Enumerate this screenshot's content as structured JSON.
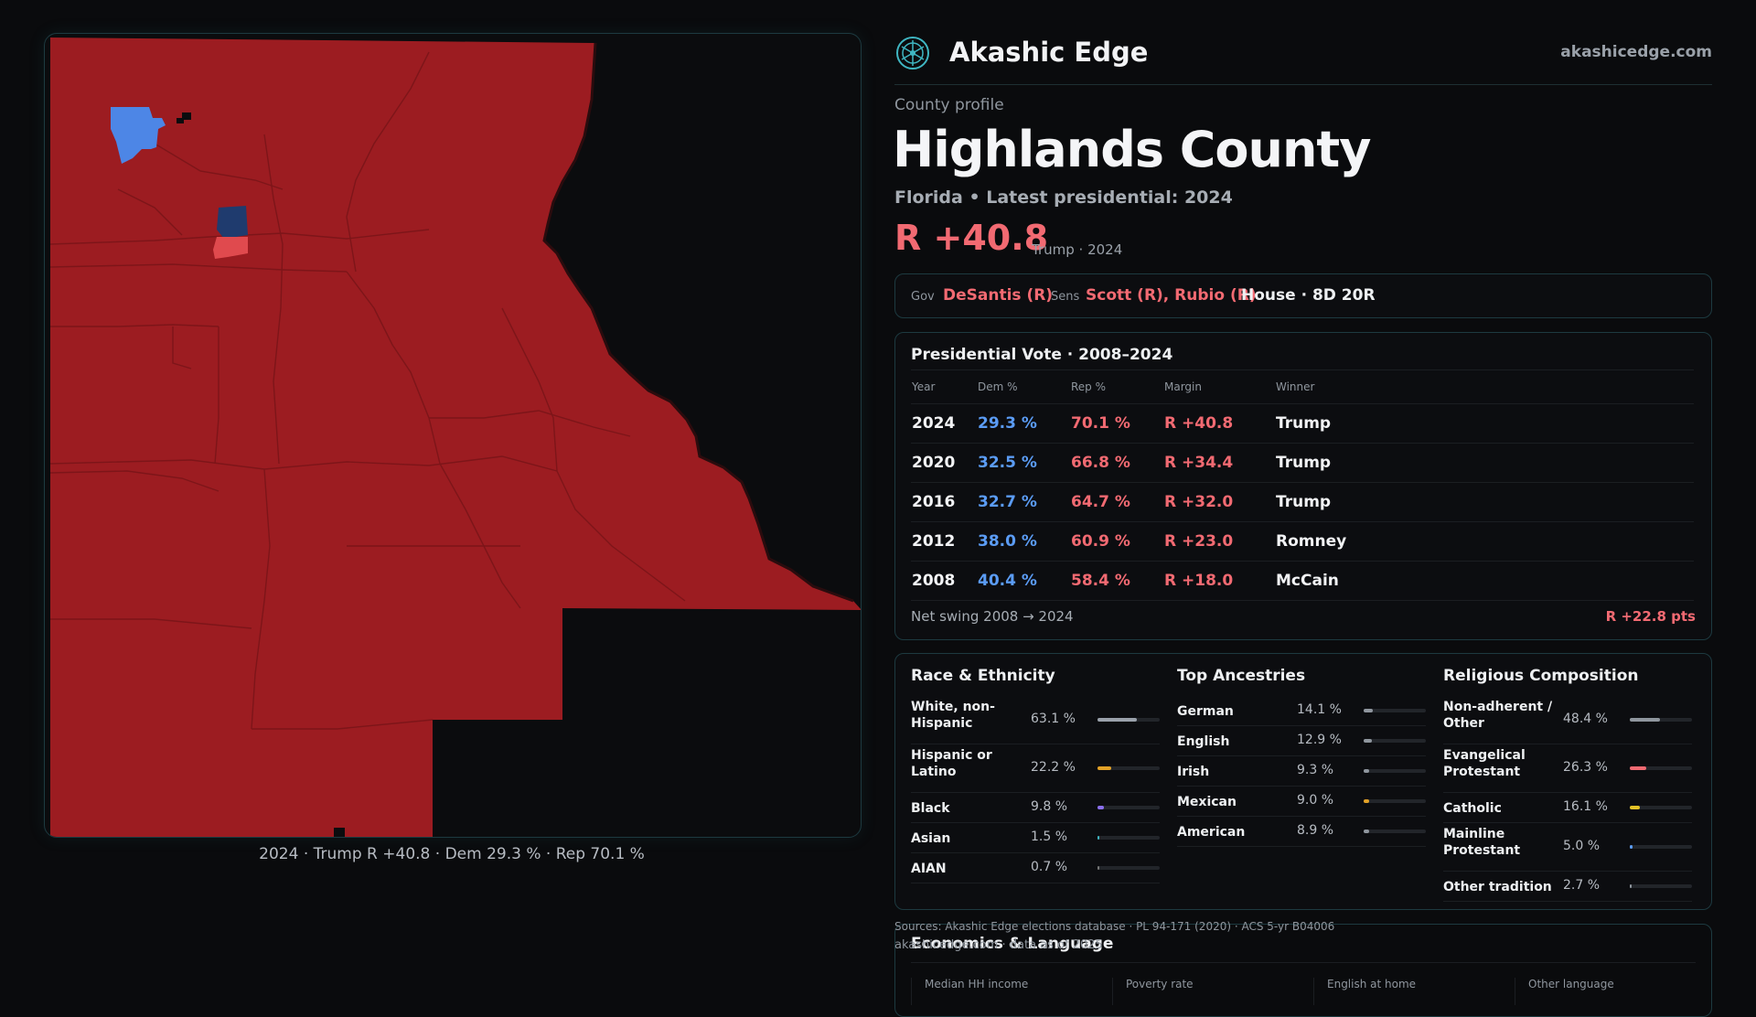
{
  "map": {
    "caption": "2024 · Trump R +40.8 · Dem 29.3 % · Rep 70.1 %"
  },
  "header": {
    "brand": "Akashic Edge",
    "site": "akashicedge.com",
    "logo_icon": "sacred-geometry-logo-icon"
  },
  "profile": {
    "label": "County profile",
    "title": "Highlands County",
    "subtitle": "Florida • Latest presidential: 2024",
    "margin": "R +40.8",
    "margin_note": "Trump · 2024"
  },
  "officials": {
    "gov_label": "Gov",
    "gov": "DeSantis (R)",
    "sens_label": "Sens",
    "sens": "Scott (R), Rubio (R)",
    "house": "House · 8D 20R"
  },
  "presidential": {
    "title": "Presidential Vote · 2008–2024",
    "headers": [
      "Year",
      "Dem %",
      "Rep %",
      "Margin",
      "Winner"
    ],
    "rows": [
      {
        "year": "2024",
        "dem": "29.3 %",
        "rep": "70.1 %",
        "margin": "R +40.8",
        "winner": "Trump"
      },
      {
        "year": "2020",
        "dem": "32.5 %",
        "rep": "66.8 %",
        "margin": "R +34.4",
        "winner": "Trump"
      },
      {
        "year": "2016",
        "dem": "32.7 %",
        "rep": "64.7 %",
        "margin": "R +32.0",
        "winner": "Trump"
      },
      {
        "year": "2012",
        "dem": "38.0 %",
        "rep": "60.9 %",
        "margin": "R +23.0",
        "winner": "Romney"
      },
      {
        "year": "2008",
        "dem": "40.4 %",
        "rep": "58.4 %",
        "margin": "R +18.0",
        "winner": "McCain"
      }
    ],
    "net_swing_label": "Net swing 2008 → 2024",
    "net_swing_value": "R +22.8 pts"
  },
  "race": {
    "title": "Race & Ethnicity",
    "items": [
      {
        "label": "White, non-Hispanic",
        "pct": "63.1 %",
        "value": 63.1,
        "color": "#9aa1ab"
      },
      {
        "label": "Hispanic or Latino",
        "pct": "22.2 %",
        "value": 22.2,
        "color": "#e3a227"
      },
      {
        "label": "Black",
        "pct": "9.8 %",
        "value": 9.8,
        "color": "#8b6ff0"
      },
      {
        "label": "Asian",
        "pct": "1.5 %",
        "value": 1.5,
        "color": "#3fb6c2"
      },
      {
        "label": "AIAN",
        "pct": "0.7 %",
        "value": 0.7,
        "color": "#777777"
      }
    ]
  },
  "ancestry": {
    "title": "Top Ancestries",
    "items": [
      {
        "label": "German",
        "pct": "14.1 %",
        "value": 14.1,
        "color": "#8f969e"
      },
      {
        "label": "English",
        "pct": "12.9 %",
        "value": 12.9,
        "color": "#8f969e"
      },
      {
        "label": "Irish",
        "pct": "9.3 %",
        "value": 9.3,
        "color": "#8f969e"
      },
      {
        "label": "Mexican",
        "pct": "9.0 %",
        "value": 9.0,
        "color": "#e3a227"
      },
      {
        "label": "American",
        "pct": "8.9 %",
        "value": 8.9,
        "color": "#8f969e"
      }
    ]
  },
  "religion": {
    "title": "Religious Composition",
    "items": [
      {
        "label": "Non-adherent / Other",
        "pct": "48.4 %",
        "value": 48.4,
        "color": "#8f969e"
      },
      {
        "label": "Evangelical Protestant",
        "pct": "26.3 %",
        "value": 26.3,
        "color": "#f26a72"
      },
      {
        "label": "Catholic",
        "pct": "16.1 %",
        "value": 16.1,
        "color": "#e3c227"
      },
      {
        "label": "Mainline Protestant",
        "pct": "5.0 %",
        "value": 5.0,
        "color": "#5b9cf5"
      },
      {
        "label": "Other tradition",
        "pct": "2.7 %",
        "value": 2.7,
        "color": "#8f969e"
      }
    ]
  },
  "footer": {
    "sources": "Sources: Akashic Edge elections database · PL 94-171 (2020) · ACS 5-yr B04006",
    "site_line": "akashicedge.com · data as of 2025"
  },
  "economics": {
    "title": "Economics & Language",
    "stats": [
      "Median HH income",
      "Poverty rate",
      "English at home",
      "Other language"
    ]
  }
}
